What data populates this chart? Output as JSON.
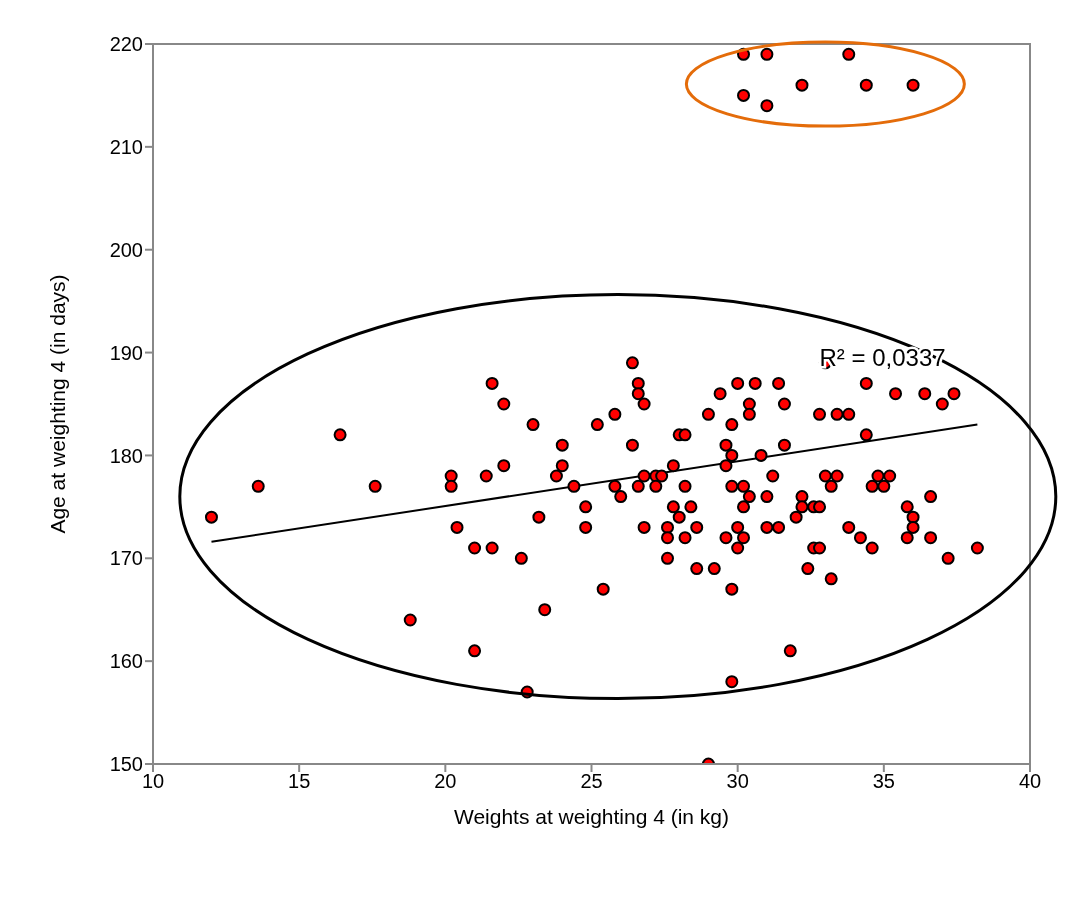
{
  "chart_data": {
    "type": "scatter",
    "xlabel": "Weights at weighting 4 (in kg)",
    "ylabel": "Age at weighting 4 (in days)",
    "xlim": [
      10,
      40
    ],
    "xticks": [
      10,
      15,
      20,
      25,
      30,
      35,
      40
    ],
    "ylim": [
      150,
      220
    ],
    "yticks": [
      150,
      160,
      170,
      180,
      190,
      200,
      210,
      220
    ],
    "grid": false,
    "legend": false,
    "annotations": [
      "R² = 0,0337"
    ],
    "series": [
      {
        "marker": "circle",
        "color": "#ff0000",
        "x": [
          30.2,
          31,
          33.8,
          30.2,
          31,
          32.2,
          34.4,
          36,
          12,
          13.6,
          16.4,
          17.6,
          18.8,
          20.2,
          20.2,
          20.4,
          21,
          21,
          21.4,
          21.6,
          21.6,
          22,
          22,
          22.6,
          22.8,
          23,
          23.2,
          23.4,
          23.8,
          24,
          24,
          24.4,
          24.8,
          24.8,
          25.2,
          25.4,
          25.8,
          25.8,
          26,
          26.4,
          26.4,
          26.6,
          26.6,
          26.6,
          26.8,
          26.8,
          26.8,
          27.2,
          27.2,
          27.4,
          27.6,
          27.6,
          27.6,
          27.8,
          27.8,
          28,
          28,
          28.2,
          28.2,
          28.2,
          28.4,
          28.6,
          28.6,
          29,
          29,
          29.2,
          29.4,
          29.6,
          29.6,
          29.6,
          29.8,
          29.8,
          29.8,
          29.8,
          29.8,
          30,
          30,
          30,
          30.2,
          30.2,
          30.2,
          30.4,
          30.4,
          30.4,
          30.6,
          30.8,
          31,
          31,
          31.2,
          31.4,
          31.4,
          31.6,
          31.6,
          31.8,
          32,
          32.2,
          32.2,
          32.4,
          32.6,
          32.6,
          32.8,
          32.8,
          32.8,
          33,
          33,
          33.2,
          33.2,
          33.4,
          33.4,
          33.8,
          33.8,
          34.2,
          34.4,
          34.4,
          34.6,
          34.6,
          34.8,
          35,
          35.2,
          35.4,
          35.8,
          35.8,
          36,
          36,
          36.4,
          36.6,
          36.6,
          37,
          37.2,
          37.4,
          38.2
        ],
        "values": [
          219,
          219,
          219,
          215,
          214,
          216,
          216,
          216,
          174,
          177,
          182,
          177,
          164,
          178,
          177,
          173,
          171,
          161,
          178,
          187,
          171,
          185,
          179,
          170,
          157,
          183,
          174,
          165,
          178,
          181,
          179,
          177,
          175,
          173,
          183,
          167,
          184,
          177,
          176,
          189,
          181,
          187,
          186,
          177,
          185,
          178,
          173,
          178,
          177,
          178,
          173,
          172,
          170,
          179,
          175,
          182,
          174,
          182,
          177,
          172,
          175,
          173,
          169,
          184,
          150,
          169,
          186,
          181,
          179,
          172,
          183,
          180,
          177,
          167,
          158,
          187,
          173,
          171,
          177,
          175,
          172,
          185,
          184,
          176,
          187,
          180,
          176,
          173,
          178,
          187,
          173,
          185,
          181,
          161,
          174,
          176,
          175,
          169,
          175,
          171,
          184,
          175,
          171,
          189,
          178,
          177,
          168,
          184,
          178,
          184,
          173,
          172,
          187,
          182,
          177,
          171,
          178,
          177,
          178,
          186,
          175,
          172,
          174,
          173,
          186,
          176,
          172,
          185,
          170,
          186,
          171
        ]
      },
      {
        "type": "line",
        "marker": "none",
        "color": "#000000",
        "x": [
          12,
          38.2
        ],
        "values": [
          171.6,
          183.0
        ]
      }
    ]
  }
}
